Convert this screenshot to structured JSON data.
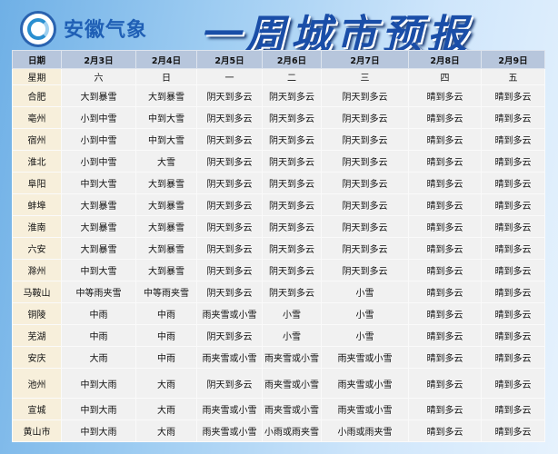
{
  "header": {
    "brand": "安徽气象",
    "title": "一周城市预报",
    "logo_icon": "anhui-meteorology-logo"
  },
  "table": {
    "date_label": "日期",
    "dates": [
      "2月3日",
      "2月4日",
      "2月5日",
      "2月6日",
      "2月7日",
      "2月8日",
      "2月9日"
    ],
    "weekday_label": "星期",
    "weekdays": [
      "六",
      "日",
      "一",
      "二",
      "三",
      "四",
      "五"
    ],
    "rows": [
      {
        "city": "合肥",
        "f": [
          "大到暴雪",
          "大到暴雪",
          "阴天到多云",
          "阴天到多云",
          "阴天到多云",
          "晴到多云",
          "晴到多云"
        ]
      },
      {
        "city": "亳州",
        "f": [
          "小到中雪",
          "中到大雪",
          "阴天到多云",
          "阴天到多云",
          "阴天到多云",
          "晴到多云",
          "晴到多云"
        ]
      },
      {
        "city": "宿州",
        "f": [
          "小到中雪",
          "中到大雪",
          "阴天到多云",
          "阴天到多云",
          "阴天到多云",
          "晴到多云",
          "晴到多云"
        ]
      },
      {
        "city": "淮北",
        "f": [
          "小到中雪",
          "大雪",
          "阴天到多云",
          "阴天到多云",
          "阴天到多云",
          "晴到多云",
          "晴到多云"
        ]
      },
      {
        "city": "阜阳",
        "f": [
          "中到大雪",
          "大到暴雪",
          "阴天到多云",
          "阴天到多云",
          "阴天到多云",
          "晴到多云",
          "晴到多云"
        ]
      },
      {
        "city": "蚌埠",
        "f": [
          "大到暴雪",
          "大到暴雪",
          "阴天到多云",
          "阴天到多云",
          "阴天到多云",
          "晴到多云",
          "晴到多云"
        ]
      },
      {
        "city": "淮南",
        "f": [
          "大到暴雪",
          "大到暴雪",
          "阴天到多云",
          "阴天到多云",
          "阴天到多云",
          "晴到多云",
          "晴到多云"
        ]
      },
      {
        "city": "六安",
        "f": [
          "大到暴雪",
          "大到暴雪",
          "阴天到多云",
          "阴天到多云",
          "阴天到多云",
          "晴到多云",
          "晴到多云"
        ]
      },
      {
        "city": "滁州",
        "f": [
          "中到大雪",
          "大到暴雪",
          "阴天到多云",
          "阴天到多云",
          "阴天到多云",
          "晴到多云",
          "晴到多云"
        ]
      },
      {
        "city": "马鞍山",
        "f": [
          "中等雨夹雪",
          "中等雨夹雪",
          "阴天到多云",
          "阴天到多云",
          "小雪",
          "晴到多云",
          "晴到多云"
        ]
      },
      {
        "city": "铜陵",
        "f": [
          "中雨",
          "中雨",
          "雨夹雪或小雪",
          "小雪",
          "小雪",
          "晴到多云",
          "晴到多云"
        ]
      },
      {
        "city": "芜湖",
        "f": [
          "中雨",
          "中雨",
          "阴天到多云",
          "小雪",
          "小雪",
          "晴到多云",
          "晴到多云"
        ]
      },
      {
        "city": "安庆",
        "f": [
          "大雨",
          "中雨",
          "雨夹雪或小雪",
          "雨夹雪或小雪",
          "雨夹雪或小雪",
          "晴到多云",
          "晴到多云"
        ]
      },
      {
        "city": "池州",
        "f": [
          "中到大雨",
          "大雨",
          "阴天到多云",
          "雨夹雪或小雪",
          "雨夹雪或小雪",
          "晴到多云",
          "晴到多云"
        ]
      },
      {
        "city": "宣城",
        "f": [
          "中到大雨",
          "大雨",
          "雨夹雪或小雪",
          "雨夹雪或小雪",
          "雨夹雪或小雪",
          "晴到多云",
          "晴到多云"
        ]
      },
      {
        "city": "黄山市",
        "f": [
          "中到大雨",
          "大雨",
          "雨夹雪或小雪",
          "小雨或雨夹雪",
          "小雨或雨夹雪",
          "晴到多云",
          "晴到多云"
        ]
      }
    ]
  }
}
